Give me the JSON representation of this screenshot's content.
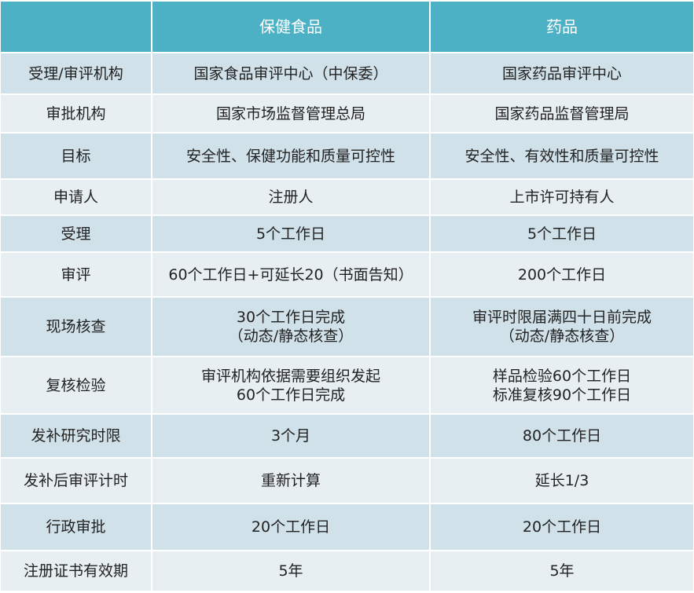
{
  "table": {
    "header": [
      "保健食品",
      "药品"
    ],
    "rows": [
      [
        "受理/审评机构",
        "国家食品审评中心（中保委）",
        "国家药品审评中心"
      ],
      [
        "审批机构",
        "国家市场监督管理总局",
        "国家药品监督管理局"
      ],
      [
        "目标",
        "安全性、保健功能和质量可控性",
        "安全性、有效性和质量可控性"
      ],
      [
        "申请人",
        "注册人",
        "上市许可持有人"
      ],
      [
        "受理",
        "5个工作日",
        "5个工作日"
      ],
      [
        "审评",
        "60个工作日+可延长20（书面告知）",
        "200个工作日"
      ],
      [
        "现场核查",
        [
          "30个工作日完成",
          "（动态/静态核查）"
        ],
        [
          "审评时限届满四十日前完成",
          "（动态/静态核查）"
        ]
      ],
      [
        "复核检验",
        [
          "审评机构依据需要组织发起",
          "60个工作日完成"
        ],
        [
          "样品检验60个工作日",
          "标准复核90个工作日"
        ]
      ],
      [
        "发补研究时限",
        "3个月",
        "80个工作日"
      ],
      [
        "发补后审评计时",
        "重新计算",
        "延长1/3"
      ],
      [
        "行政审批",
        "20个工作日",
        "20个工作日"
      ],
      [
        "注册证书有效期",
        "5年",
        "5年"
      ]
    ]
  }
}
